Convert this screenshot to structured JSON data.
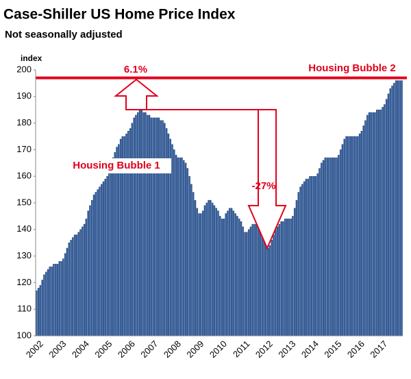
{
  "chart_data": {
    "type": "bar",
    "title": "Case-Shiller US Home Price Index",
    "subtitle": "Not seasonally adjusted",
    "y_axis_label": "index",
    "annotations": [
      "6.1%",
      "Housing Bubble 2",
      "Housing Bubble 1",
      "-27%"
    ],
    "reference_value": 197,
    "reference_color": "#e0001b",
    "color": "#35609f",
    "ylim": [
      100,
      200
    ],
    "yticks": [
      100,
      110,
      120,
      130,
      140,
      150,
      160,
      170,
      180,
      190,
      200
    ],
    "categories": [
      "2002",
      null,
      null,
      null,
      null,
      null,
      null,
      null,
      null,
      null,
      null,
      null,
      "2003",
      null,
      null,
      null,
      null,
      null,
      null,
      null,
      null,
      null,
      null,
      null,
      "2004",
      null,
      null,
      null,
      null,
      null,
      null,
      null,
      null,
      null,
      null,
      null,
      "2005",
      null,
      null,
      null,
      null,
      null,
      null,
      null,
      null,
      null,
      null,
      null,
      "2006",
      null,
      null,
      null,
      null,
      null,
      null,
      null,
      null,
      null,
      null,
      null,
      "2007",
      null,
      null,
      null,
      null,
      null,
      null,
      null,
      null,
      null,
      null,
      null,
      "2008",
      null,
      null,
      null,
      null,
      null,
      null,
      null,
      null,
      null,
      null,
      null,
      "2009",
      null,
      null,
      null,
      null,
      null,
      null,
      null,
      null,
      null,
      null,
      null,
      "2010",
      null,
      null,
      null,
      null,
      null,
      null,
      null,
      null,
      null,
      null,
      null,
      "2011",
      null,
      null,
      null,
      null,
      null,
      null,
      null,
      null,
      null,
      null,
      null,
      "2012",
      null,
      null,
      null,
      null,
      null,
      null,
      null,
      null,
      null,
      null,
      null,
      "2013",
      null,
      null,
      null,
      null,
      null,
      null,
      null,
      null,
      null,
      null,
      null,
      "2014",
      null,
      null,
      null,
      null,
      null,
      null,
      null,
      null,
      null,
      null,
      null,
      "2015",
      null,
      null,
      null,
      null,
      null,
      null,
      null,
      null,
      null,
      null,
      null,
      "2016",
      null,
      null,
      null,
      null,
      null,
      null,
      null,
      null,
      null,
      null,
      null,
      "2017",
      null,
      null,
      null,
      null,
      null,
      null,
      null,
      null,
      null,
      null,
      null
    ],
    "values": [
      117,
      118,
      119,
      121,
      123,
      124,
      125,
      126,
      126,
      127,
      127,
      127,
      128,
      128,
      129,
      131,
      133,
      135,
      136,
      137,
      138,
      138,
      139,
      140,
      141,
      142,
      144,
      147,
      149,
      151,
      153,
      154,
      155,
      156,
      157,
      158,
      159,
      160,
      162,
      165,
      167,
      169,
      171,
      172,
      174,
      175,
      175,
      176,
      177,
      178,
      180,
      182,
      183,
      184,
      185,
      185,
      184,
      184,
      183,
      183,
      182,
      182,
      182,
      182,
      182,
      181,
      181,
      180,
      178,
      176,
      174,
      172,
      170,
      168,
      167,
      167,
      167,
      166,
      165,
      163,
      160,
      157,
      154,
      151,
      148,
      146,
      146,
      147,
      149,
      150,
      151,
      151,
      150,
      149,
      148,
      147,
      145,
      144,
      144,
      146,
      147,
      148,
      148,
      147,
      146,
      145,
      144,
      143,
      141,
      139,
      139,
      140,
      141,
      142,
      142,
      142,
      141,
      139,
      138,
      137,
      135,
      133,
      134,
      136,
      138,
      140,
      141,
      142,
      143,
      143,
      144,
      144,
      144,
      144,
      145,
      148,
      151,
      154,
      156,
      157,
      158,
      159,
      159,
      160,
      160,
      160,
      160,
      161,
      163,
      165,
      166,
      167,
      167,
      167,
      167,
      167,
      167,
      167,
      168,
      170,
      172,
      174,
      175,
      175,
      175,
      175,
      175,
      175,
      175,
      176,
      177,
      179,
      181,
      183,
      184,
      184,
      184,
      184,
      185,
      185,
      185,
      186,
      187,
      189,
      191,
      193,
      194,
      195,
      196,
      196,
      196,
      196
    ]
  }
}
